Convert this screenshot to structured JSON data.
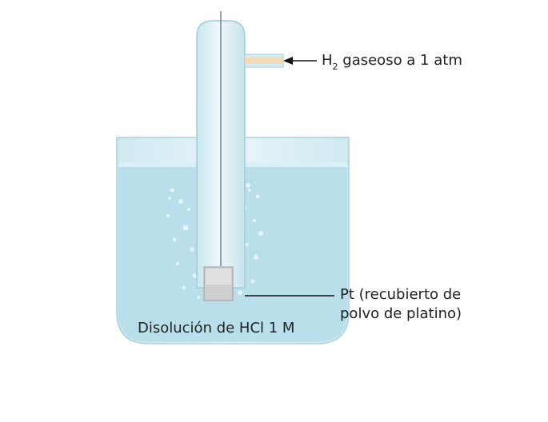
{
  "diagram": {
    "h2_label": {
      "main": "H",
      "sub": "2",
      "rest": " gaseoso a 1 atm"
    },
    "pt_label": {
      "line1": "Pt (recubierto de",
      "line2": "polvo de platino)"
    },
    "solution_label": "Disolución de HCl 1 M"
  },
  "colors": {
    "solution": "#bfe3ee",
    "glass": "#d7eef5",
    "glass_edge": "#9cc8d6",
    "electrode": "#c9c9c9",
    "gas_tube": "#f4d7b0",
    "arrow": "#111111"
  }
}
